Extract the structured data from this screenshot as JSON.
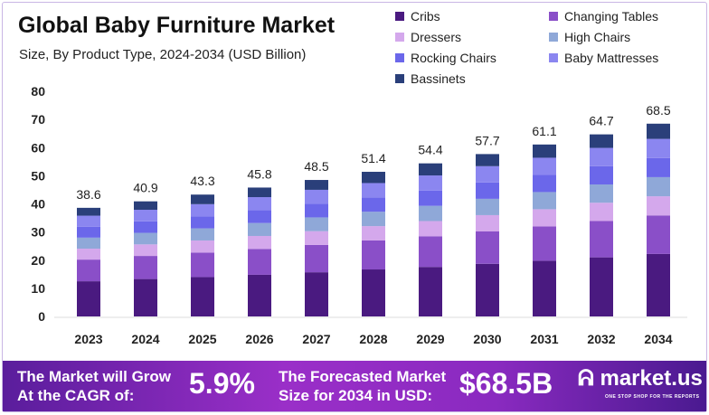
{
  "chart_data": {
    "type": "bar",
    "stacked": true,
    "title": "Global Baby Furniture Market",
    "subtitle": "Size, By Product Type, 2024-2034 (USD Billion)",
    "categories": [
      "2023",
      "2024",
      "2025",
      "2026",
      "2027",
      "2028",
      "2029",
      "2030",
      "2031",
      "2032",
      "2034"
    ],
    "totals": [
      "38.6",
      "40.9",
      "43.3",
      "45.8",
      "48.5",
      "51.4",
      "54.4",
      "57.7",
      "61.1",
      "64.7",
      "68.5"
    ],
    "ylim": [
      0,
      80
    ],
    "yticks": [
      0,
      10,
      20,
      30,
      40,
      50,
      60,
      70,
      80
    ],
    "grid": false,
    "legend_position": "top-right",
    "series": [
      {
        "name": "Cribs",
        "color": "#4a1a80",
        "values": [
          12.5,
          13.3,
          14.0,
          14.8,
          15.7,
          16.7,
          17.6,
          18.7,
          19.8,
          21.0,
          22.2
        ]
      },
      {
        "name": "Changing Tables",
        "color": "#8a4fc8",
        "values": [
          7.7,
          8.2,
          8.7,
          9.2,
          9.7,
          10.3,
          10.9,
          11.5,
          12.2,
          12.9,
          13.7
        ]
      },
      {
        "name": "Dressers",
        "color": "#d4a8ec",
        "values": [
          3.9,
          4.1,
          4.3,
          4.6,
          4.9,
          5.1,
          5.4,
          5.8,
          6.1,
          6.5,
          6.8
        ]
      },
      {
        "name": "High Chairs",
        "color": "#8fa8d8",
        "values": [
          3.9,
          4.1,
          4.3,
          4.6,
          4.9,
          5.1,
          5.4,
          5.8,
          6.1,
          6.5,
          6.8
        ]
      },
      {
        "name": "Rocking Chairs",
        "color": "#6b67ea",
        "values": [
          3.9,
          4.1,
          4.3,
          4.6,
          4.9,
          5.1,
          5.4,
          5.8,
          6.1,
          6.5,
          6.8
        ]
      },
      {
        "name": "Baby Mattresses",
        "color": "#8b86f0",
        "values": [
          3.9,
          4.1,
          4.3,
          4.6,
          4.9,
          5.1,
          5.4,
          5.8,
          6.1,
          6.5,
          6.8
        ]
      },
      {
        "name": "Bassinets",
        "color": "#2a3f7a",
        "values": [
          2.8,
          3.0,
          3.4,
          3.4,
          3.5,
          4.0,
          4.3,
          4.3,
          4.7,
          4.8,
          5.4
        ]
      }
    ]
  },
  "banner": {
    "cagr_label_1": "The Market will Grow",
    "cagr_label_2": "At the CAGR of:",
    "cagr_value": "5.9%",
    "forecast_label_1": "The Forecasted Market",
    "forecast_label_2": "Size for 2034 in USD:",
    "forecast_value": "$68.5B",
    "logo_text": "market.us",
    "logo_tagline": "ONE STOP SHOP FOR THE REPORTS"
  }
}
